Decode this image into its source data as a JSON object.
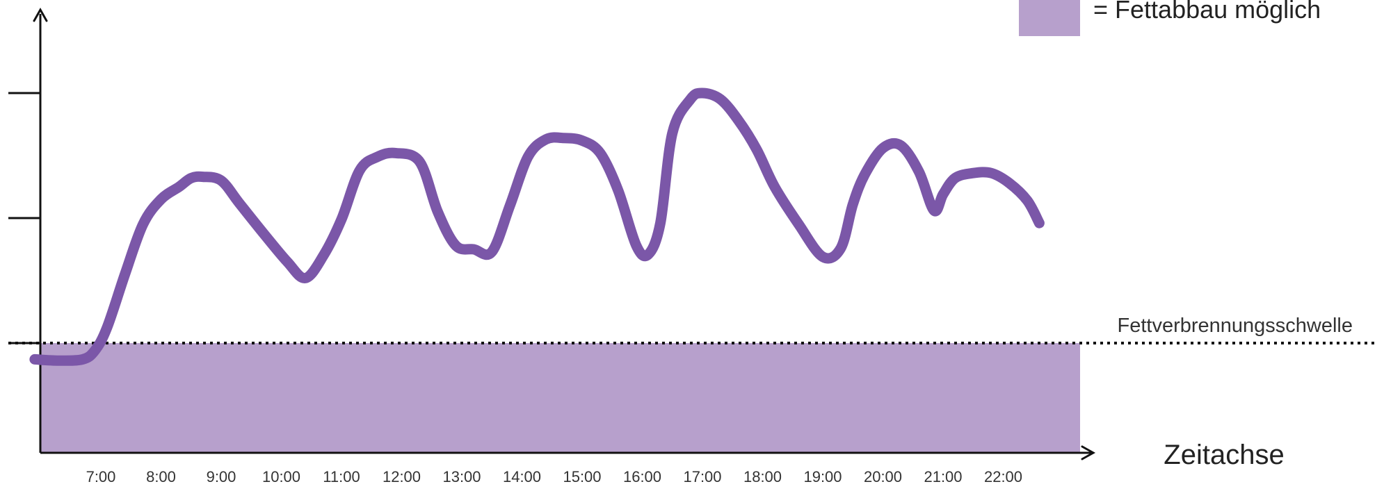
{
  "chart_data": {
    "type": "line",
    "title": "",
    "xlabel": "Zeitachse",
    "ylabel": "",
    "x_ticks": [
      "7:00",
      "8:00",
      "9:00",
      "10:00",
      "11:00",
      "12:00",
      "13:00",
      "14:00",
      "15:00",
      "16:00",
      "17:00",
      "18:00",
      "19:00",
      "20:00",
      "21:00",
      "22:00"
    ],
    "y_ticks": [
      1,
      2,
      3
    ],
    "ylim": [
      0,
      3.6
    ],
    "xlim": [
      6.0,
      23.0
    ],
    "threshold": {
      "label": "Fettverbrennungsschwelle",
      "value": 1
    },
    "legend": {
      "label": "= Fettabbau möglich",
      "position": "top-right"
    },
    "series": [
      {
        "x": [
          5.9,
          6.3,
          6.7,
          6.9,
          7.1,
          7.4,
          7.7,
          8.0,
          8.3,
          8.5,
          8.7,
          9.0,
          9.3,
          9.7,
          10.1,
          10.4,
          10.7,
          11.0,
          11.3,
          11.6,
          11.9,
          12.3,
          12.6,
          12.9,
          13.2,
          13.5,
          13.8,
          14.1,
          14.4,
          14.7,
          15.0,
          15.3,
          15.6,
          15.9,
          16.1,
          16.3,
          16.5,
          16.8,
          17.0,
          17.3,
          17.6,
          17.9,
          18.2,
          18.6,
          19.0,
          19.3,
          19.5,
          19.7,
          20.0,
          20.3,
          20.6,
          20.85,
          21.0,
          21.2,
          21.5,
          21.8,
          22.1,
          22.4,
          22.6
        ],
        "y": [
          0.87,
          0.86,
          0.87,
          0.94,
          1.12,
          1.55,
          1.95,
          2.15,
          2.25,
          2.32,
          2.33,
          2.3,
          2.12,
          1.88,
          1.65,
          1.52,
          1.7,
          1.99,
          2.38,
          2.49,
          2.52,
          2.45,
          2.05,
          1.78,
          1.75,
          1.73,
          2.1,
          2.49,
          2.63,
          2.64,
          2.62,
          2.52,
          2.22,
          1.78,
          1.71,
          1.96,
          2.68,
          2.95,
          3.0,
          2.95,
          2.78,
          2.55,
          2.25,
          1.95,
          1.69,
          1.76,
          2.11,
          2.35,
          2.56,
          2.58,
          2.37,
          2.06,
          2.19,
          2.32,
          2.36,
          2.36,
          2.28,
          2.14,
          1.96
        ]
      }
    ],
    "colors": {
      "line": "#7b57a8",
      "fill": "#b7a0cc",
      "axis": "#111111"
    }
  }
}
